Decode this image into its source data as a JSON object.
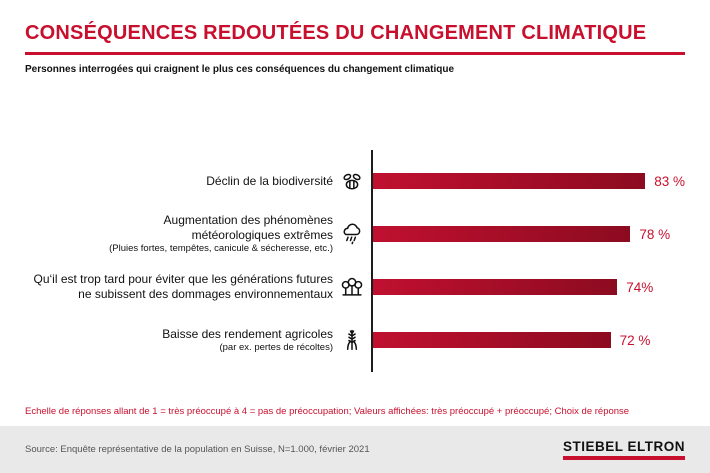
{
  "page": {
    "source": "Source: Enquête représentative de la population en Suisse, N=1.000, février 2021",
    "logo_text": "STIEBEL ELTRON"
  },
  "colors": {
    "accent_red": "#c8102e",
    "bar_gradient_start": "#c01030",
    "bar_gradient_end": "#8c0b20",
    "footer_bg": "#e9e9e9"
  },
  "chart_data": {
    "type": "bar",
    "orientation": "horizontal",
    "unit": "%",
    "xlim": [
      0,
      100
    ],
    "title": "CONSÉQUENCES REDOUTÉES DU CHANGEMENT CLIMATIQUE",
    "subtitle": "Personnes interrogées qui craignent le plus ces conséquences du changement climatique",
    "footnote": "Echelle de réponses allant de 1 = très préoccupé à 4 = pas de préoccupation; Valeurs affichées: très préoccupé + préoccupé; Choix de réponse",
    "rows": [
      {
        "icon": "bee-icon",
        "label": "Déclin de la biodiversité",
        "sublabel": "",
        "value": 83,
        "value_label": "83 %"
      },
      {
        "icon": "rain-cloud-icon",
        "label": "Augmentation des phénomènes météorologiques extrêmes",
        "sublabel": "(Pluies fortes, tempêtes, canicule & sécheresse, etc.)",
        "value": 78,
        "value_label": "78 %"
      },
      {
        "icon": "trees-icon",
        "label": "Qu‘il est trop tard pour éviter que les générations futures ne subissent des dommages environnementaux",
        "sublabel": "",
        "value": 74,
        "value_label": "74%"
      },
      {
        "icon": "wheat-icon",
        "label": "Baisse des rendement agricoles",
        "sublabel": "(par ex. pertes de récoltes)",
        "value": 72,
        "value_label": "72 %"
      }
    ]
  }
}
